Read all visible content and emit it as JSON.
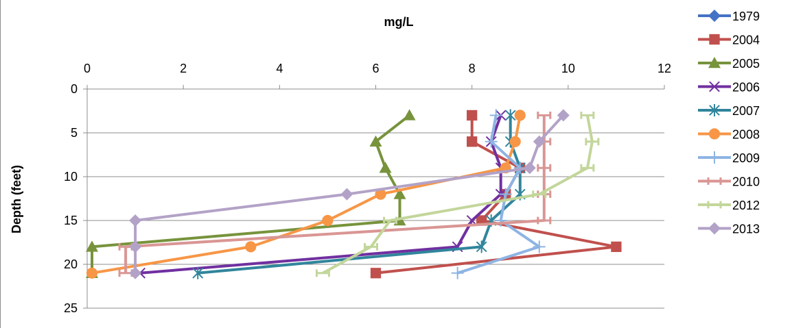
{
  "chart_data": {
    "type": "line",
    "xlabel": "mg/L",
    "ylabel": "Depth (feet)",
    "xlim": [
      0,
      12
    ],
    "ylim": [
      25,
      0
    ],
    "y_inverted": true,
    "x_axis_position": "top",
    "grid": "horizontal",
    "legend_position": "right",
    "x_ticks": [
      "0",
      "2",
      "4",
      "6",
      "8",
      "10",
      "12"
    ],
    "y_ticks": [
      "0",
      "5",
      "10",
      "15",
      "20",
      "25"
    ],
    "series": [
      {
        "name": "1979",
        "color": "#4472C4",
        "marker": "diamond",
        "points": []
      },
      {
        "name": "2004",
        "color": "#C0504D",
        "marker": "square",
        "points": [
          [
            8.0,
            3
          ],
          [
            8.0,
            6
          ],
          [
            9.0,
            9
          ],
          [
            8.7,
            12
          ],
          [
            8.2,
            15
          ],
          [
            11.0,
            18
          ],
          [
            6.0,
            21
          ]
        ]
      },
      {
        "name": "2005",
        "color": "#77933C",
        "marker": "triangle",
        "points": [
          [
            6.7,
            3
          ],
          [
            6.0,
            6
          ],
          [
            6.2,
            9
          ],
          [
            6.5,
            12
          ],
          [
            6.5,
            15
          ],
          [
            0.1,
            18
          ],
          [
            0.1,
            21
          ]
        ]
      },
      {
        "name": "2006",
        "color": "#7030A0",
        "marker": "x",
        "points": [
          [
            8.6,
            3
          ],
          [
            8.4,
            6
          ],
          [
            8.6,
            9
          ],
          [
            8.6,
            12
          ],
          [
            8.0,
            15
          ],
          [
            7.7,
            18
          ],
          [
            1.1,
            21
          ]
        ]
      },
      {
        "name": "2007",
        "color": "#31859C",
        "marker": "star",
        "points": [
          [
            8.8,
            3
          ],
          [
            8.8,
            6
          ],
          [
            9.0,
            9
          ],
          [
            9.0,
            12
          ],
          [
            8.4,
            15
          ],
          [
            8.2,
            18
          ],
          [
            2.3,
            21
          ]
        ]
      },
      {
        "name": "2008",
        "color": "#F79646",
        "marker": "circle",
        "points": [
          [
            9.0,
            3
          ],
          [
            8.9,
            6
          ],
          [
            8.7,
            9
          ],
          [
            6.1,
            12
          ],
          [
            5.0,
            15
          ],
          [
            3.4,
            18
          ],
          [
            0.1,
            21
          ]
        ]
      },
      {
        "name": "2009",
        "color": "#8EB4E3",
        "marker": "plus",
        "points": [
          [
            8.5,
            3
          ],
          [
            8.4,
            6
          ],
          [
            9.0,
            9
          ],
          [
            8.7,
            12
          ],
          [
            8.6,
            15
          ],
          [
            9.4,
            18
          ],
          [
            7.7,
            21
          ]
        ]
      },
      {
        "name": "2010",
        "color": "#D99694",
        "marker": "dash",
        "points": [
          [
            9.5,
            3
          ],
          [
            9.5,
            6
          ],
          [
            9.5,
            9
          ],
          [
            9.5,
            12
          ],
          [
            9.5,
            15
          ],
          [
            0.8,
            18
          ],
          [
            0.8,
            21
          ]
        ]
      },
      {
        "name": "2012",
        "color": "#C3D69B",
        "marker": "dash",
        "points": [
          [
            10.4,
            3
          ],
          [
            10.5,
            6
          ],
          [
            10.4,
            9
          ],
          [
            9.4,
            12
          ],
          [
            6.3,
            15
          ],
          [
            5.9,
            18
          ],
          [
            4.9,
            21
          ]
        ]
      },
      {
        "name": "2013",
        "color": "#B3A2C7",
        "marker": "diamond",
        "points": [
          [
            9.9,
            3
          ],
          [
            9.4,
            6
          ],
          [
            9.2,
            9
          ],
          [
            5.4,
            12
          ],
          [
            1.0,
            15
          ],
          [
            1.0,
            18
          ],
          [
            1.0,
            21
          ]
        ]
      }
    ]
  }
}
